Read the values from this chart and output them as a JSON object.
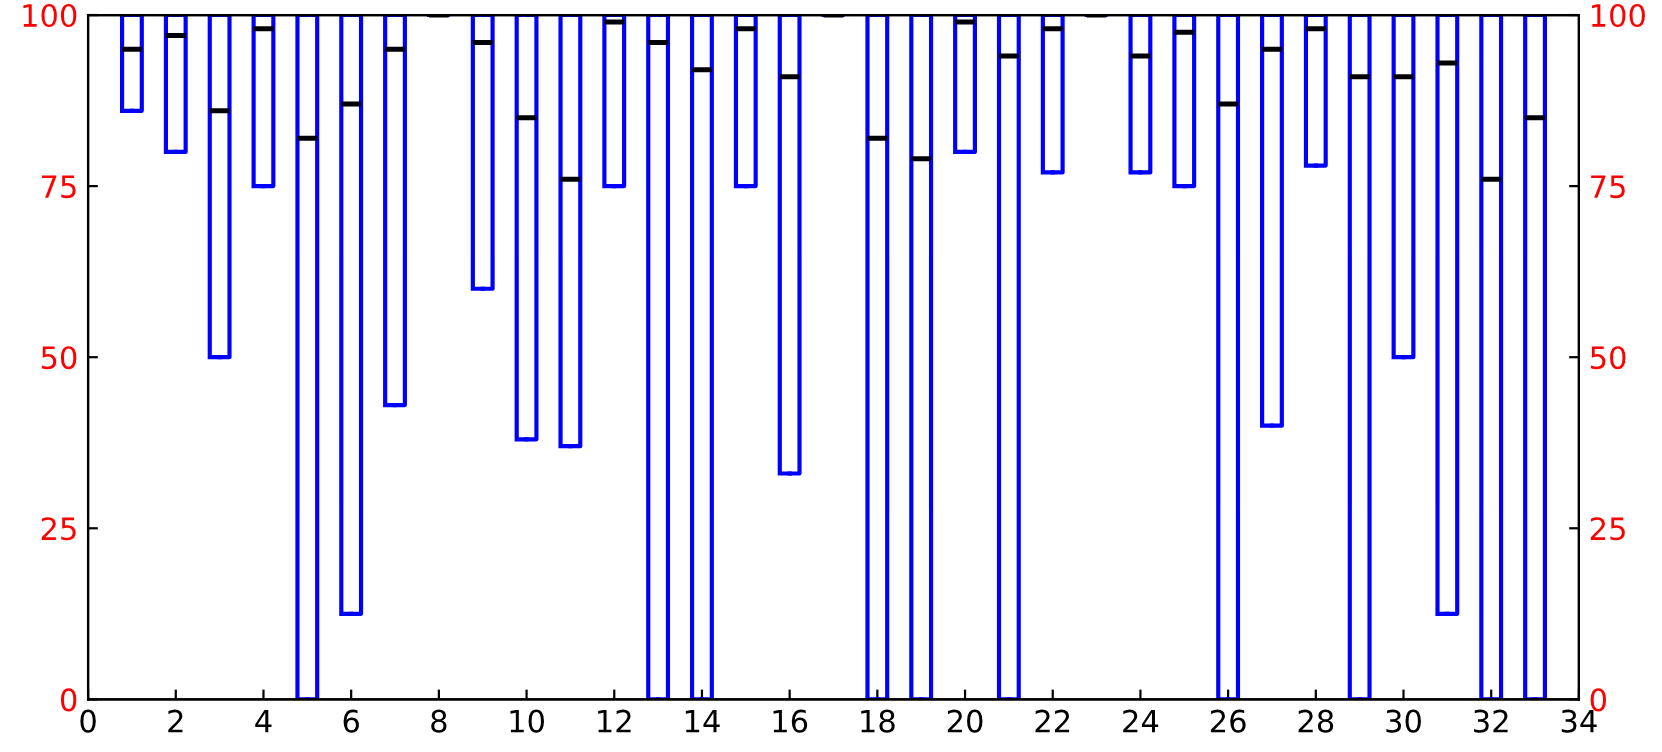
{
  "chart_data": {
    "type": "box",
    "color": "#0000ff",
    "x": [
      1,
      2,
      3,
      4,
      5,
      6,
      7,
      8,
      9,
      10,
      11,
      12,
      13,
      14,
      15,
      16,
      17,
      18,
      19,
      20,
      21,
      22,
      23,
      24,
      25,
      26,
      27,
      28,
      29,
      30,
      31,
      32,
      33
    ],
    "boxes": [
      {
        "low": 86,
        "q1": 86,
        "median": 95,
        "q3": 100,
        "high": 100
      },
      {
        "low": 80,
        "q1": 80,
        "median": 97,
        "q3": 100,
        "high": 100
      },
      {
        "low": 50,
        "q1": 50,
        "median": 86,
        "q3": 100,
        "high": 100
      },
      {
        "low": 75,
        "q1": 75,
        "median": 98,
        "q3": 100,
        "high": 100
      },
      {
        "low": 0,
        "q1": 0,
        "median": 82,
        "q3": 100,
        "high": 100
      },
      {
        "low": 12.5,
        "q1": 12.5,
        "median": 87,
        "q3": 100,
        "high": 100
      },
      {
        "low": 43,
        "q1": 43,
        "median": 95,
        "q3": 100,
        "high": 100
      },
      {
        "low": 100,
        "q1": 100,
        "median": 100,
        "q3": 100,
        "high": 100
      },
      {
        "low": 60,
        "q1": 60,
        "median": 96,
        "q3": 100,
        "high": 100
      },
      {
        "low": 38,
        "q1": 38,
        "median": 85,
        "q3": 100,
        "high": 100
      },
      {
        "low": 37,
        "q1": 37,
        "median": 76,
        "q3": 100,
        "high": 100
      },
      {
        "low": 75,
        "q1": 75,
        "median": 99,
        "q3": 100,
        "high": 100
      },
      {
        "low": 0,
        "q1": 0,
        "median": 96,
        "q3": 100,
        "high": 100
      },
      {
        "low": 0,
        "q1": 0,
        "median": 92,
        "q3": 100,
        "high": 100
      },
      {
        "low": 75,
        "q1": 75,
        "median": 98,
        "q3": 100,
        "high": 100
      },
      {
        "low": 33,
        "q1": 33,
        "median": 91,
        "q3": 100,
        "high": 100
      },
      {
        "low": 100,
        "q1": 100,
        "median": 100,
        "q3": 100,
        "high": 100
      },
      {
        "low": 0,
        "q1": 0,
        "median": 82,
        "q3": 100,
        "high": 100
      },
      {
        "low": 0,
        "q1": 0,
        "median": 79,
        "q3": 100,
        "high": 100
      },
      {
        "low": 80,
        "q1": 80,
        "median": 99,
        "q3": 100,
        "high": 100
      },
      {
        "low": 0,
        "q1": 0,
        "median": 94,
        "q3": 100,
        "high": 100
      },
      {
        "low": 77,
        "q1": 77,
        "median": 98,
        "q3": 100,
        "high": 100
      },
      {
        "low": 100,
        "q1": 100,
        "median": 100,
        "q3": 100,
        "high": 100
      },
      {
        "low": 77,
        "q1": 77,
        "median": 94,
        "q3": 100,
        "high": 100
      },
      {
        "low": 75,
        "q1": 75,
        "median": 97.5,
        "q3": 100,
        "high": 100
      },
      {
        "low": 0,
        "q1": 0,
        "median": 87,
        "q3": 100,
        "high": 100
      },
      {
        "low": 40,
        "q1": 40,
        "median": 95,
        "q3": 100,
        "high": 100
      },
      {
        "low": 78,
        "q1": 78,
        "median": 98,
        "q3": 100,
        "high": 100
      },
      {
        "low": 0,
        "q1": 0,
        "median": 91,
        "q3": 100,
        "high": 100
      },
      {
        "low": 50,
        "q1": 50,
        "median": 91,
        "q3": 100,
        "high": 100
      },
      {
        "low": 12.5,
        "q1": 12.5,
        "median": 93,
        "q3": 100,
        "high": 100
      },
      {
        "low": 0,
        "q1": 0,
        "median": 76,
        "q3": 100,
        "high": 100
      },
      {
        "low": 0,
        "q1": 0,
        "median": 85,
        "q3": 100,
        "high": 100
      }
    ],
    "xlim": [
      0,
      34
    ],
    "xticks": [
      0,
      2,
      4,
      6,
      8,
      10,
      12,
      14,
      16,
      18,
      20,
      22,
      24,
      26,
      28,
      30,
      32,
      34
    ],
    "ylim": [
      0,
      100
    ],
    "yticks": [
      0,
      25,
      50,
      75,
      100
    ],
    "y2lim": [
      0,
      100
    ],
    "y2ticks": [
      0,
      25,
      50,
      75,
      100
    ],
    "grid": false
  }
}
